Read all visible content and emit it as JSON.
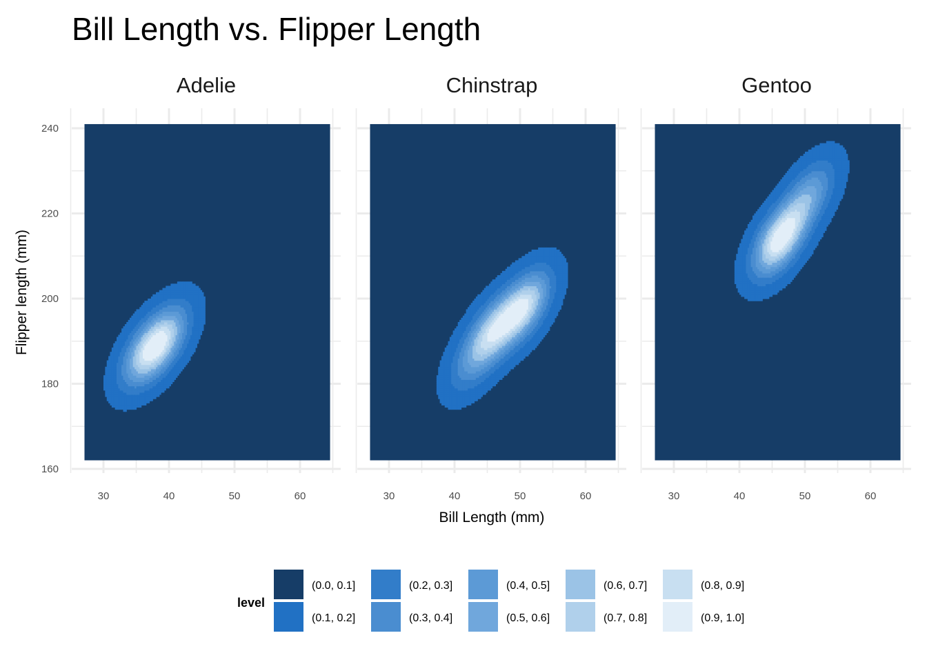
{
  "chart_data": {
    "type": "density_contour_facets",
    "title": "Bill Length vs. Flipper Length",
    "xlabel": "Bill Length (mm)",
    "ylabel": "Flipper length (mm)",
    "xlim": [
      25,
      65
    ],
    "ylim": [
      160,
      240
    ],
    "x_ticks": [
      30,
      40,
      50,
      60
    ],
    "y_ticks": [
      160,
      180,
      200,
      220,
      240
    ],
    "grid": true,
    "legend_position": "bottom",
    "facets": [
      {
        "name": "Adelie",
        "peaks": [
          {
            "x": 39,
            "y": 190,
            "weight": 1.0
          },
          {
            "x": 36.5,
            "y": 187.5,
            "weight": 0.85
          }
        ]
      },
      {
        "name": "Chinstrap",
        "peaks": [
          {
            "x": 50.5,
            "y": 198,
            "weight": 1.0
          },
          {
            "x": 46,
            "y": 192.5,
            "weight": 0.8
          },
          {
            "x": 43,
            "y": 186,
            "weight": 0.35
          }
        ]
      },
      {
        "name": "Gentoo",
        "peaks": [
          {
            "x": 46.2,
            "y": 214,
            "weight": 1.0
          },
          {
            "x": 50.5,
            "y": 224,
            "weight": 0.45
          }
        ]
      }
    ],
    "legend": {
      "title": "level",
      "levels": [
        {
          "label": "(0.0, 0.1]",
          "color": "#163d67"
        },
        {
          "label": "(0.1, 0.2]",
          "color": "#2171c4"
        },
        {
          "label": "(0.2, 0.3]",
          "color": "#327dc9"
        },
        {
          "label": "(0.3, 0.4]",
          "color": "#4a8dd0"
        },
        {
          "label": "(0.4, 0.5]",
          "color": "#5c9ad6"
        },
        {
          "label": "(0.5, 0.6]",
          "color": "#70a7dc"
        },
        {
          "label": "(0.6, 0.7]",
          "color": "#9bc3e6"
        },
        {
          "label": "(0.7, 0.8]",
          "color": "#b0d0eb"
        },
        {
          "label": "(0.8, 0.9]",
          "color": "#c8dff1"
        },
        {
          "label": "(0.9, 1.0]",
          "color": "#e2eef8"
        }
      ]
    }
  }
}
